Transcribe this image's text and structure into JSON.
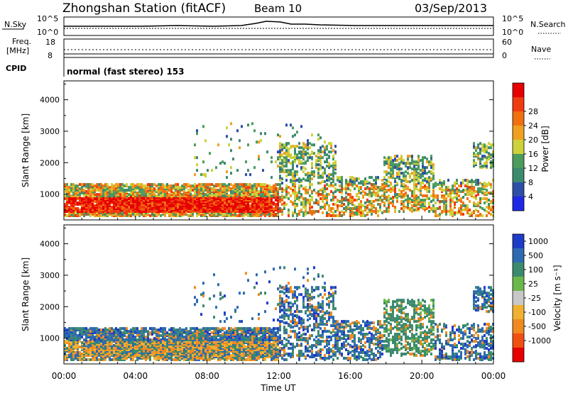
{
  "header": {
    "station": "Zhongshan Station (fitACF)",
    "beam": "Beam 10",
    "date": "03/Sep/2013"
  },
  "noise_panel": {
    "left_label": "N.Sky",
    "left_ticks": [
      "10^5",
      "10^0"
    ],
    "right_label": "N.Search",
    "right_ticks": [
      "10^5",
      "10^0"
    ]
  },
  "freq_panel": {
    "left_label_1": "Freq.",
    "left_label_2": "[MHz]",
    "left_ticks": [
      "18",
      "8"
    ],
    "right_label": "Nave",
    "right_ticks": [
      "60",
      "0"
    ],
    "cpid_label": "CPID",
    "cpid_value": "normal (fast stereo) 153"
  },
  "colors": {
    "power_scale": [
      "#1e28e6",
      "#2d4fa8",
      "#3c8a6e",
      "#4c9c5e",
      "#cdd23a",
      "#f0a020",
      "#f07010",
      "#f03a10",
      "#e60000"
    ],
    "velocity_scale": [
      "#e60000",
      "#f05010",
      "#f08a20",
      "#f0b030",
      "#c8c8c8",
      "#6ab84a",
      "#3c8a6e",
      "#2d6ab0",
      "#1e3cc8"
    ]
  },
  "chart_data": [
    {
      "type": "heatmap",
      "title": "Power",
      "ylabel": "Slant Range [km]",
      "xlabel": "Time UT",
      "ylim": [
        180,
        4600
      ],
      "y_ticks": [
        "1000",
        "2000",
        "3000",
        "4000"
      ],
      "x_ticks": [
        "00:00",
        "04:00",
        "08:00",
        "12:00",
        "16:00",
        "20:00",
        "00:00"
      ],
      "colorbar": {
        "label": "Power [dB]",
        "ticks": [
          "4",
          "8",
          "12",
          "16",
          "20",
          "24",
          "28"
        ]
      }
    },
    {
      "type": "heatmap",
      "title": "Velocity",
      "ylabel": "Slant Range [km]",
      "xlabel": "Time UT",
      "ylim": [
        180,
        4600
      ],
      "y_ticks": [
        "1000",
        "2000",
        "3000",
        "4000"
      ],
      "x_ticks": [
        "00:00",
        "04:00",
        "08:00",
        "12:00",
        "16:00",
        "20:00",
        "00:00"
      ],
      "colorbar": {
        "label": "Velocity [m s⁻¹]",
        "ticks": [
          "1000",
          "500",
          "100",
          "25",
          "-25",
          "-100",
          "-500",
          "-1000"
        ]
      }
    }
  ]
}
